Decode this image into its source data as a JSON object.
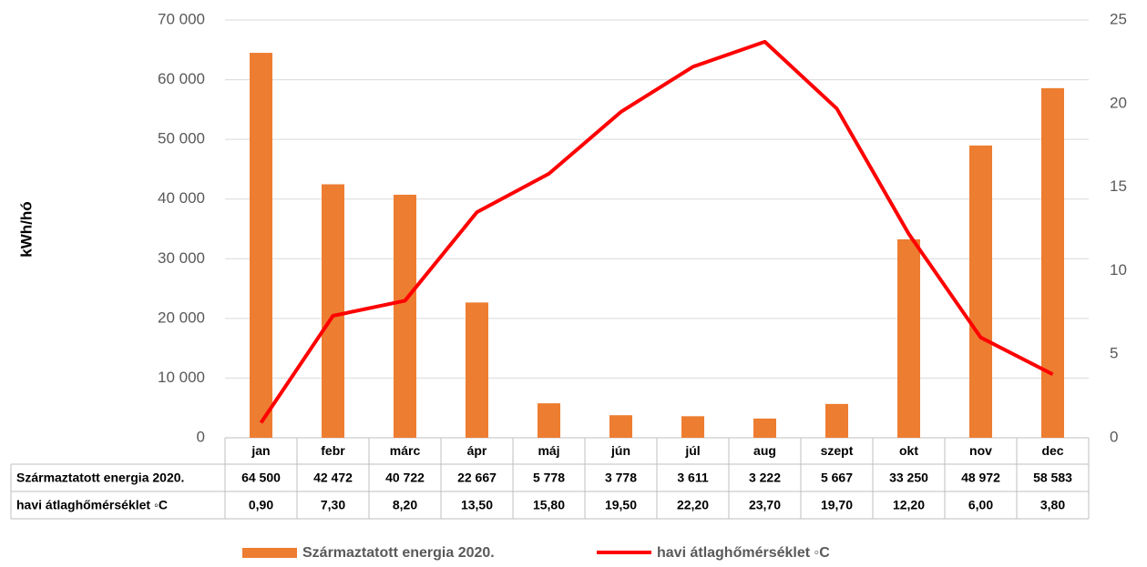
{
  "chart_data": {
    "type": "bar",
    "y_label": "kWh/hó",
    "categories": [
      "jan",
      "febr",
      "márc",
      "ápr",
      "máj",
      "jún",
      "júl",
      "aug",
      "szept",
      "okt",
      "nov",
      "dec"
    ],
    "series": [
      {
        "name": "Származtatott energia 2020.",
        "type": "bar",
        "color": "#ed7d31",
        "values": [
          64500,
          42472,
          40722,
          22667,
          5778,
          3778,
          3611,
          3222,
          5667,
          33250,
          48972,
          58583
        ],
        "value_labels": [
          "64 500",
          "42 472",
          "40 722",
          "22 667",
          "5 778",
          "3 778",
          "3 611",
          "3 222",
          "5 667",
          "33 250",
          "48 972",
          "58 583"
        ]
      },
      {
        "name": "havi átlaghőmérséklet ◦C",
        "type": "line",
        "axis": "y2",
        "color": "#ff0000",
        "values": [
          0.9,
          7.3,
          8.2,
          13.5,
          15.8,
          19.5,
          22.2,
          23.7,
          19.7,
          12.2,
          6.0,
          3.8
        ],
        "value_labels": [
          "0,90",
          "7,30",
          "8,20",
          "13,50",
          "15,80",
          "19,50",
          "22,20",
          "23,70",
          "19,70",
          "12,20",
          "6,00",
          "3,80"
        ]
      }
    ],
    "ylim": [
      0,
      70000
    ],
    "yticks": [
      0,
      {
        "value": 10000,
        "label": "10 000"
      },
      {
        "value": 20000,
        "label": "20 000"
      },
      {
        "value": 30000,
        "label": "30 000"
      },
      {
        "value": 40000,
        "label": "40 000"
      },
      {
        "value": 50000,
        "label": "50 000"
      },
      {
        "value": 60000,
        "label": "60 000"
      },
      {
        "value": 70000,
        "label": "70 000"
      }
    ],
    "y2lim": [
      0,
      25
    ],
    "y2ticks": [
      0,
      5,
      10,
      15,
      20,
      25
    ],
    "grid": true,
    "legend": "bottom"
  }
}
